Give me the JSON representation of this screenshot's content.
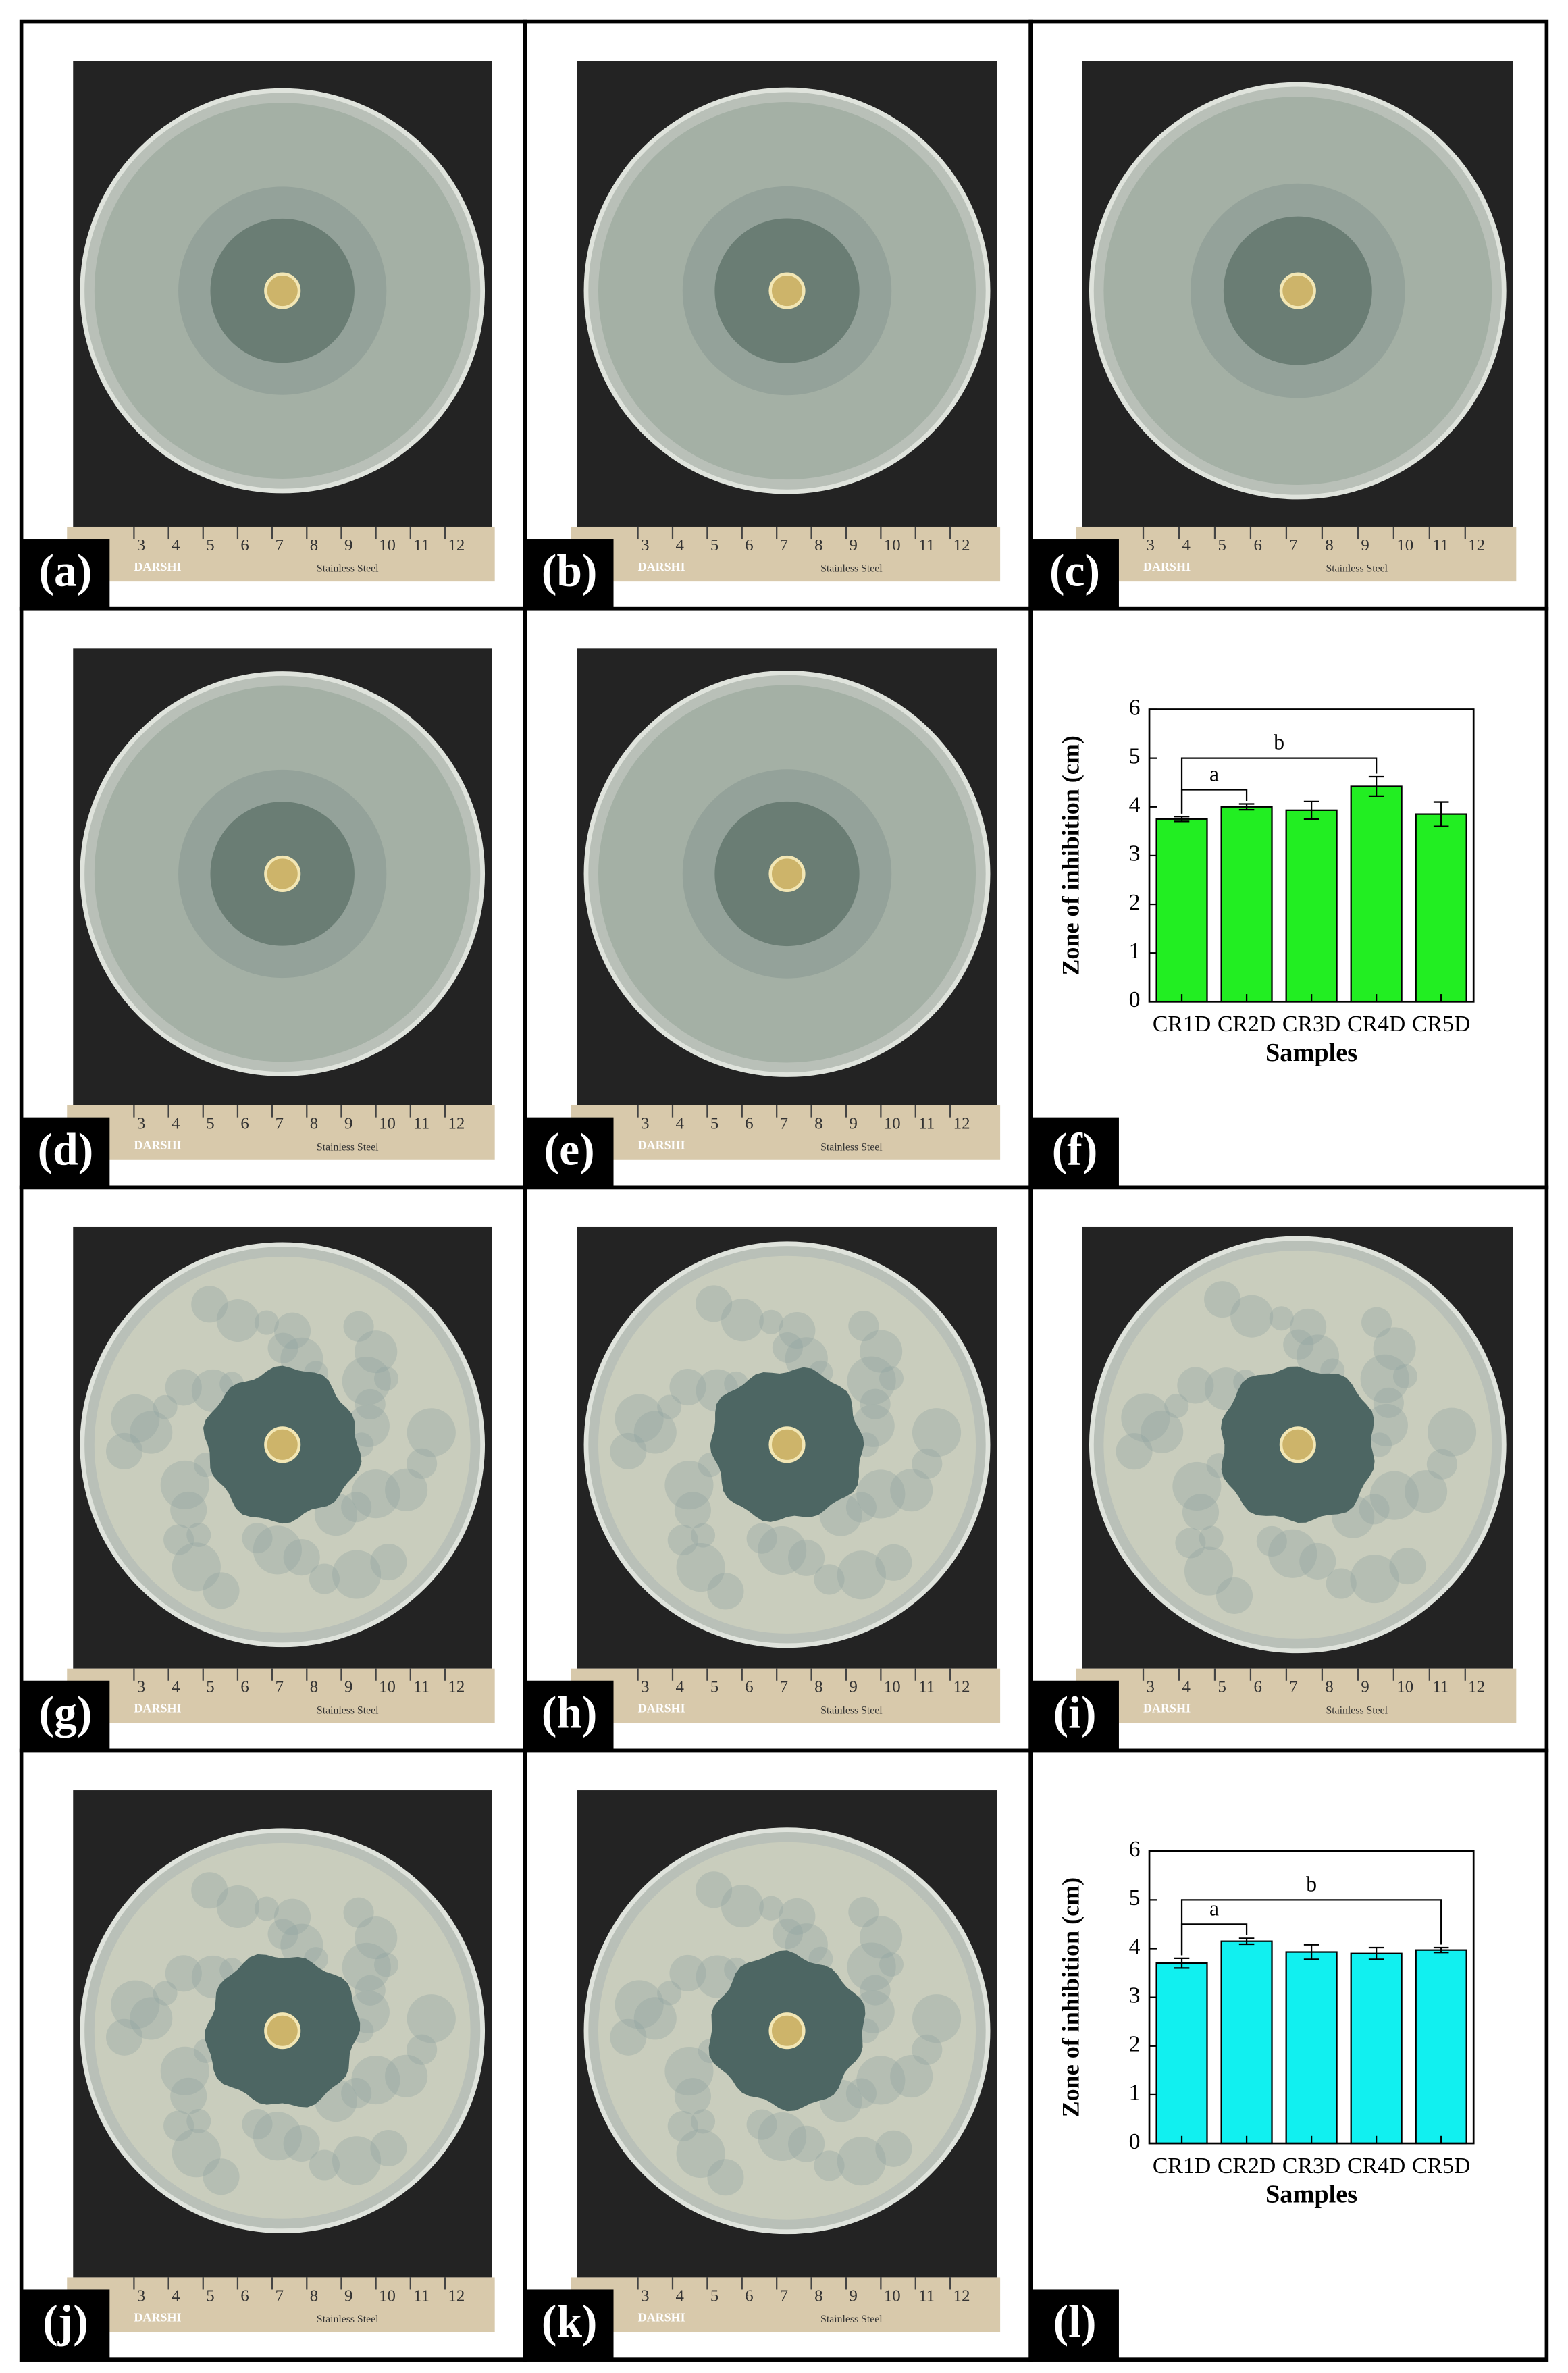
{
  "panels": [
    {
      "label": "(a)"
    },
    {
      "label": "(b)"
    },
    {
      "label": "(c)"
    },
    {
      "label": "(d)"
    },
    {
      "label": "(e)"
    },
    {
      "label": "(f)"
    },
    {
      "label": "(g)"
    },
    {
      "label": "(h)"
    },
    {
      "label": "(i)"
    },
    {
      "label": "(j)"
    },
    {
      "label": "(k)"
    },
    {
      "label": "(l)"
    }
  ],
  "ruler": {
    "brand": "DARSHI",
    "material": "Stainless Steel",
    "numbers": [
      3,
      4,
      5,
      6,
      7,
      8,
      9,
      10,
      11,
      12
    ]
  },
  "chart_data": [
    {
      "type": "bar",
      "panel": "(f)",
      "categories": [
        "CR1D",
        "CR2D",
        "CR3D",
        "CR4D",
        "CR5D"
      ],
      "values": [
        3.75,
        4.0,
        3.93,
        4.42,
        3.85
      ],
      "errors": [
        0.05,
        0.06,
        0.18,
        0.2,
        0.25
      ],
      "color": "#22ee22",
      "xlabel": "Samples",
      "ylabel": "Zone of inhibition (cm)",
      "ylim": [
        0,
        6
      ],
      "yticks": [
        0,
        1,
        2,
        3,
        4,
        5,
        6
      ],
      "brackets": [
        {
          "label": "a",
          "from": "CR1D",
          "to": "CR2D",
          "y": 4.35
        },
        {
          "label": "b",
          "from": "CR1D",
          "to": "CR4D",
          "y": 5.0
        }
      ]
    },
    {
      "type": "bar",
      "panel": "(l)",
      "categories": [
        "CR1D",
        "CR2D",
        "CR3D",
        "CR4D",
        "CR5D"
      ],
      "values": [
        3.7,
        4.15,
        3.93,
        3.9,
        3.97
      ],
      "errors": [
        0.1,
        0.06,
        0.15,
        0.12,
        0.05
      ],
      "color": "#11f0f0",
      "xlabel": "Samples",
      "ylabel": "Zone of inhibition (cm)",
      "ylim": [
        0,
        6
      ],
      "yticks": [
        0,
        1,
        2,
        3,
        4,
        5,
        6
      ],
      "brackets": [
        {
          "label": "a",
          "from": "CR1D",
          "to": "CR2D",
          "y": 4.5
        },
        {
          "label": "b",
          "from": "CR1D",
          "to": "CR5D",
          "y": 5.0
        }
      ]
    }
  ]
}
